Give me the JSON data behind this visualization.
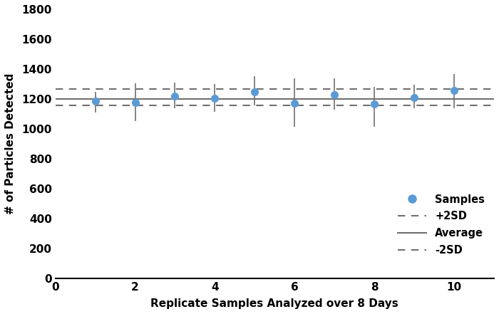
{
  "x": [
    1,
    2,
    3,
    4,
    5,
    6,
    7,
    8,
    9,
    10
  ],
  "y": [
    1185,
    1175,
    1220,
    1205,
    1245,
    1170,
    1230,
    1165,
    1210,
    1255
  ],
  "yerr_upper": [
    60,
    130,
    90,
    95,
    105,
    170,
    110,
    115,
    85,
    110
  ],
  "yerr_lower": [
    75,
    125,
    80,
    90,
    90,
    155,
    100,
    150,
    70,
    115
  ],
  "average": 1200,
  "plus2sd": 1265,
  "minus2sd": 1155,
  "dot_color": "#5B9BD5",
  "errorbar_color": "#707070",
  "average_color": "#707070",
  "sd_color": "#707070",
  "xlabel": "Replicate Samples Analyzed over 8 Days",
  "ylabel": "# of Particles Detected",
  "xlim": [
    0,
    11
  ],
  "ylim": [
    0,
    1800
  ],
  "yticks": [
    0,
    200,
    400,
    600,
    800,
    1000,
    1200,
    1400,
    1600,
    1800
  ],
  "xticks": [
    0,
    2,
    4,
    6,
    8,
    10
  ],
  "legend_labels": [
    "Samples",
    "+2SD",
    "Average",
    "-2SD"
  ],
  "figsize": [
    7.0,
    4.41
  ],
  "dpi": 100
}
